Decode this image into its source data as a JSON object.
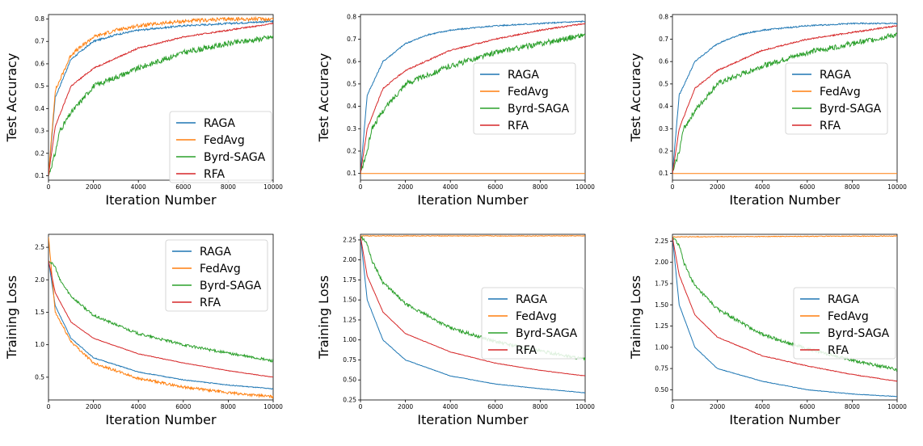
{
  "figure": {
    "layout": "2x3 grid of line charts",
    "colors": {
      "RAGA": "#1f77b4",
      "FedAvg": "#ff7f0e",
      "Byrd-SAGA": "#2ca02c",
      "RFA": "#d62728"
    }
  },
  "chart_data": [
    {
      "type": "line",
      "xlabel": "Iteration Number",
      "ylabel": "Test Accuracy",
      "xlim": [
        0,
        10000
      ],
      "ylim": [
        0.08,
        0.82
      ],
      "xticks": [
        0,
        2000,
        4000,
        6000,
        8000,
        10000
      ],
      "yticks": [
        0.1,
        0.2,
        0.3,
        0.4,
        0.5,
        0.6,
        0.7,
        0.8
      ],
      "ytick_labels": [
        "0.1",
        "0.2",
        "0.3",
        "0.4",
        "0.5",
        "0.6",
        "0.7",
        "0.8"
      ],
      "legend_position": "lower-right",
      "grid": false,
      "series": [
        {
          "name": "RAGA",
          "x": [
            0,
            300,
            1000,
            2000,
            3000,
            4000,
            6000,
            8000,
            10000
          ],
          "values": [
            0.1,
            0.45,
            0.62,
            0.7,
            0.73,
            0.75,
            0.77,
            0.78,
            0.79
          ],
          "noise": 0.004
        },
        {
          "name": "FedAvg",
          "x": [
            0,
            300,
            1000,
            2000,
            3000,
            4000,
            6000,
            8000,
            10000
          ],
          "values": [
            0.1,
            0.48,
            0.64,
            0.72,
            0.75,
            0.77,
            0.79,
            0.8,
            0.8
          ],
          "noise": 0.008
        },
        {
          "name": "Byrd-SAGA",
          "x": [
            0,
            300,
            500,
            1000,
            2000,
            4000,
            6000,
            8000,
            10000
          ],
          "values": [
            0.1,
            0.2,
            0.3,
            0.38,
            0.5,
            0.58,
            0.65,
            0.69,
            0.72
          ],
          "noise": 0.012
        },
        {
          "name": "RFA",
          "x": [
            0,
            300,
            1000,
            2000,
            4000,
            6000,
            8000,
            10000
          ],
          "values": [
            0.1,
            0.32,
            0.5,
            0.58,
            0.67,
            0.72,
            0.75,
            0.78
          ],
          "noise": 0.003
        }
      ]
    },
    {
      "type": "line",
      "xlabel": "Iteration Number",
      "ylabel": "Test Accuracy",
      "xlim": [
        0,
        10000
      ],
      "ylim": [
        0.07,
        0.81
      ],
      "xticks": [
        0,
        2000,
        4000,
        6000,
        8000,
        10000
      ],
      "yticks": [
        0.1,
        0.2,
        0.3,
        0.4,
        0.5,
        0.6,
        0.7,
        0.8
      ],
      "ytick_labels": [
        "0.1",
        "0.2",
        "0.3",
        "0.4",
        "0.5",
        "0.6",
        "0.7",
        "0.8"
      ],
      "legend_position": "center-right",
      "grid": false,
      "series": [
        {
          "name": "RAGA",
          "x": [
            0,
            300,
            1000,
            2000,
            3000,
            4000,
            6000,
            8000,
            10000
          ],
          "values": [
            0.1,
            0.45,
            0.6,
            0.68,
            0.72,
            0.74,
            0.76,
            0.77,
            0.78
          ],
          "noise": 0.003
        },
        {
          "name": "FedAvg",
          "x": [
            0,
            10000
          ],
          "values": [
            0.1,
            0.1
          ],
          "noise": 0
        },
        {
          "name": "Byrd-SAGA",
          "x": [
            0,
            300,
            500,
            1000,
            2000,
            4000,
            6000,
            8000,
            10000
          ],
          "values": [
            0.1,
            0.2,
            0.3,
            0.38,
            0.5,
            0.58,
            0.64,
            0.68,
            0.72
          ],
          "noise": 0.012
        },
        {
          "name": "RFA",
          "x": [
            0,
            300,
            1000,
            2000,
            4000,
            6000,
            8000,
            10000
          ],
          "values": [
            0.1,
            0.3,
            0.48,
            0.56,
            0.65,
            0.7,
            0.74,
            0.77
          ],
          "noise": 0.003
        }
      ]
    },
    {
      "type": "line",
      "xlabel": "Iteration Number",
      "ylabel": "Test Accuracy",
      "xlim": [
        0,
        10000
      ],
      "ylim": [
        0.07,
        0.81
      ],
      "xticks": [
        0,
        2000,
        4000,
        6000,
        8000,
        10000
      ],
      "yticks": [
        0.1,
        0.2,
        0.3,
        0.4,
        0.5,
        0.6,
        0.7,
        0.8
      ],
      "ytick_labels": [
        "0.1",
        "0.2",
        "0.3",
        "0.4",
        "0.5",
        "0.6",
        "0.7",
        "0.8"
      ],
      "legend_position": "center-right",
      "grid": false,
      "series": [
        {
          "name": "RAGA",
          "x": [
            0,
            300,
            1000,
            2000,
            3000,
            4000,
            6000,
            8000,
            10000
          ],
          "values": [
            0.1,
            0.45,
            0.6,
            0.68,
            0.72,
            0.74,
            0.76,
            0.77,
            0.77
          ],
          "noise": 0.003
        },
        {
          "name": "FedAvg",
          "x": [
            0,
            10000
          ],
          "values": [
            0.1,
            0.1
          ],
          "noise": 0
        },
        {
          "name": "Byrd-SAGA",
          "x": [
            0,
            300,
            500,
            1000,
            2000,
            4000,
            6000,
            8000,
            10000
          ],
          "values": [
            0.1,
            0.2,
            0.3,
            0.38,
            0.5,
            0.58,
            0.64,
            0.68,
            0.72
          ],
          "noise": 0.012
        },
        {
          "name": "RFA",
          "x": [
            0,
            300,
            1000,
            2000,
            4000,
            6000,
            8000,
            10000
          ],
          "values": [
            0.1,
            0.3,
            0.48,
            0.56,
            0.65,
            0.7,
            0.73,
            0.76
          ],
          "noise": 0.003
        }
      ]
    },
    {
      "type": "line",
      "xlabel": "Iteration Number",
      "ylabel": "Training Loss",
      "xlim": [
        0,
        10000
      ],
      "ylim": [
        0.15,
        2.7
      ],
      "xticks": [
        0,
        2000,
        4000,
        6000,
        8000,
        10000
      ],
      "yticks": [
        0.5,
        1.0,
        1.5,
        2.0,
        2.5
      ],
      "ytick_labels": [
        "0.5",
        "1.0",
        "1.5",
        "2.0",
        "2.5"
      ],
      "legend_position": "upper-right",
      "grid": false,
      "series": [
        {
          "name": "RAGA",
          "x": [
            0,
            300,
            1000,
            2000,
            4000,
            6000,
            8000,
            10000
          ],
          "values": [
            2.3,
            1.6,
            1.1,
            0.8,
            0.58,
            0.46,
            0.38,
            0.32
          ],
          "noise": 0.006
        },
        {
          "name": "FedAvg",
          "x": [
            0,
            300,
            1000,
            2000,
            4000,
            6000,
            8000,
            10000
          ],
          "values": [
            2.66,
            1.5,
            1.05,
            0.72,
            0.48,
            0.35,
            0.26,
            0.2
          ],
          "noise": 0.02
        },
        {
          "name": "Byrd-SAGA",
          "x": [
            0,
            300,
            500,
            1000,
            2000,
            4000,
            6000,
            8000,
            10000
          ],
          "values": [
            2.3,
            2.2,
            2.0,
            1.75,
            1.45,
            1.17,
            1.0,
            0.87,
            0.75
          ],
          "noise": 0.02
        },
        {
          "name": "RFA",
          "x": [
            0,
            300,
            1000,
            2000,
            4000,
            6000,
            8000,
            10000
          ],
          "values": [
            2.3,
            1.8,
            1.35,
            1.1,
            0.86,
            0.72,
            0.6,
            0.5
          ],
          "noise": 0.004
        }
      ]
    },
    {
      "type": "line",
      "xlabel": "Iteration Number",
      "ylabel": "Training Loss",
      "xlim": [
        0,
        10000
      ],
      "ylim": [
        0.25,
        2.32
      ],
      "xticks": [
        0,
        2000,
        4000,
        6000,
        8000,
        10000
      ],
      "yticks": [
        0.25,
        0.5,
        0.75,
        1.0,
        1.25,
        1.5,
        1.75,
        2.0,
        2.25
      ],
      "ytick_labels": [
        "0.25",
        "0.50",
        "0.75",
        "1.00",
        "1.25",
        "1.50",
        "1.75",
        "2.00",
        "2.25"
      ],
      "legend_position": "center-right",
      "grid": false,
      "series": [
        {
          "name": "RAGA",
          "x": [
            0,
            300,
            1000,
            2000,
            4000,
            6000,
            8000,
            10000
          ],
          "values": [
            2.3,
            1.5,
            1.0,
            0.75,
            0.55,
            0.45,
            0.39,
            0.34
          ],
          "noise": 0.003
        },
        {
          "name": "FedAvg",
          "x": [
            0,
            10000
          ],
          "values": [
            2.3,
            2.3
          ],
          "noise": 0.004
        },
        {
          "name": "Byrd-SAGA",
          "x": [
            0,
            300,
            500,
            1000,
            2000,
            4000,
            6000,
            8000,
            10000
          ],
          "values": [
            2.3,
            2.2,
            2.0,
            1.72,
            1.45,
            1.15,
            0.98,
            0.86,
            0.76
          ],
          "noise": 0.02
        },
        {
          "name": "RFA",
          "x": [
            0,
            300,
            1000,
            2000,
            4000,
            6000,
            8000,
            10000
          ],
          "values": [
            2.3,
            1.8,
            1.35,
            1.08,
            0.85,
            0.71,
            0.62,
            0.55
          ],
          "noise": 0.003
        }
      ]
    },
    {
      "type": "line",
      "xlabel": "Iteration Number",
      "ylabel": "Training Loss",
      "xlim": [
        0,
        10000
      ],
      "ylim": [
        0.38,
        2.33
      ],
      "xticks": [
        0,
        2000,
        4000,
        6000,
        8000,
        10000
      ],
      "yticks": [
        0.5,
        0.75,
        1.0,
        1.25,
        1.5,
        1.75,
        2.0,
        2.25
      ],
      "ytick_labels": [
        "0.50",
        "0.75",
        "1.00",
        "1.25",
        "1.50",
        "1.75",
        "2.00",
        "2.25"
      ],
      "legend_position": "center-right",
      "grid": false,
      "series": [
        {
          "name": "RAGA",
          "x": [
            0,
            300,
            1000,
            2000,
            4000,
            6000,
            8000,
            10000
          ],
          "values": [
            2.3,
            1.5,
            1.0,
            0.75,
            0.6,
            0.5,
            0.45,
            0.42
          ],
          "noise": 0.003
        },
        {
          "name": "FedAvg",
          "x": [
            0,
            10000
          ],
          "values": [
            2.3,
            2.31
          ],
          "noise": 0.004
        },
        {
          "name": "Byrd-SAGA",
          "x": [
            0,
            300,
            500,
            1000,
            2000,
            4000,
            6000,
            8000,
            10000
          ],
          "values": [
            2.3,
            2.2,
            2.0,
            1.72,
            1.45,
            1.15,
            0.98,
            0.85,
            0.74
          ],
          "noise": 0.02
        },
        {
          "name": "RFA",
          "x": [
            0,
            300,
            1000,
            2000,
            4000,
            6000,
            8000,
            10000
          ],
          "values": [
            2.3,
            1.85,
            1.38,
            1.12,
            0.9,
            0.78,
            0.68,
            0.6
          ],
          "noise": 0.004
        }
      ]
    }
  ]
}
